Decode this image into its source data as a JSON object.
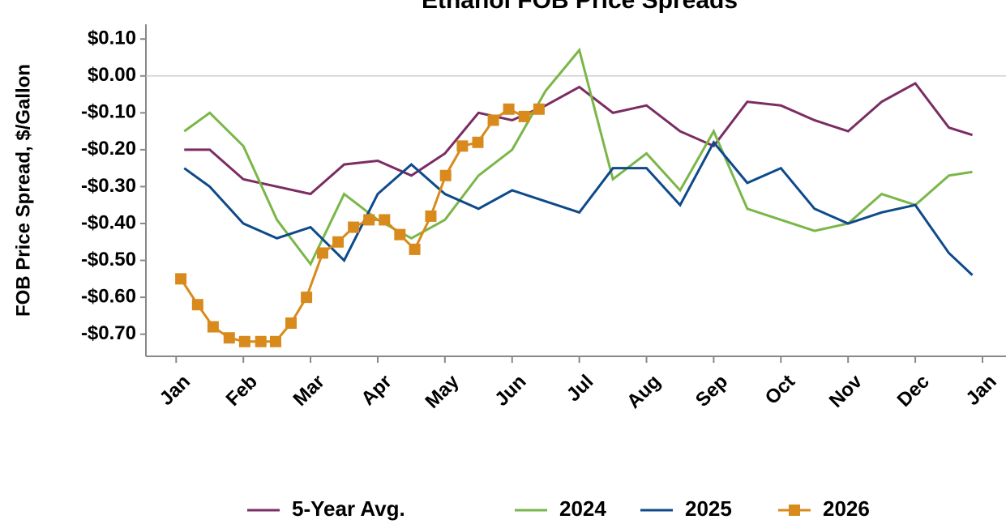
{
  "chart_data": {
    "type": "line",
    "title": "Ethanol FOB Price Spreads",
    "y_label": "FOB Price Spread, $/Gallon",
    "xlim": [
      -0.45,
      12.35
    ],
    "xticks": [
      {
        "value": 0,
        "label": "Jan"
      },
      {
        "value": 1,
        "label": "Feb"
      },
      {
        "value": 2,
        "label": "Mar"
      },
      {
        "value": 3,
        "label": "Apr"
      },
      {
        "value": 4,
        "label": "May"
      },
      {
        "value": 5,
        "label": "Jun"
      },
      {
        "value": 6,
        "label": "Jul"
      },
      {
        "value": 7,
        "label": "Aug"
      },
      {
        "value": 8,
        "label": "Sep"
      },
      {
        "value": 9,
        "label": "Oct"
      },
      {
        "value": 10,
        "label": "Nov"
      },
      {
        "value": 11,
        "label": "Dec"
      },
      {
        "value": 12,
        "label": "Jan"
      }
    ],
    "ylim": [
      -0.76,
      0.14
    ],
    "yticks": [
      {
        "value": 0.1,
        "label": "$0.10"
      },
      {
        "value": 0,
        "label": "$0.00"
      },
      {
        "value": -0.1,
        "label": "-$0.10"
      },
      {
        "value": -0.2,
        "label": "-$0.20"
      },
      {
        "value": -0.3,
        "label": "-$0.30"
      },
      {
        "value": -0.4,
        "label": "-$0.40"
      },
      {
        "value": -0.5,
        "label": "-$0.50"
      },
      {
        "value": -0.6,
        "label": "-$0.60"
      },
      {
        "value": -0.7,
        "label": "-$0.70"
      }
    ],
    "zero_line": true,
    "legend": "bottom",
    "series": [
      {
        "name": "5-Year Avg.",
        "color": "#7b2d63",
        "marker": false,
        "x": [
          0.12,
          0.5,
          1,
          1.5,
          2,
          2.5,
          3,
          3.5,
          4,
          4.5,
          5,
          5.5,
          6,
          6.5,
          7,
          7.5,
          8,
          8.5,
          9,
          9.5,
          10,
          10.5,
          11,
          11.5,
          11.85
        ],
        "values": [
          -0.2,
          -0.2,
          -0.28,
          -0.3,
          -0.32,
          -0.24,
          -0.23,
          -0.27,
          -0.21,
          -0.1,
          -0.12,
          -0.08,
          -0.03,
          -0.1,
          -0.08,
          -0.15,
          -0.19,
          -0.07,
          -0.08,
          -0.12,
          -0.15,
          -0.07,
          -0.02,
          -0.14,
          -0.16
        ]
      },
      {
        "name": "2024",
        "color": "#7ab648",
        "marker": false,
        "x": [
          0.12,
          0.5,
          1,
          1.5,
          2,
          2.5,
          3,
          3.5,
          4,
          4.5,
          5,
          5.5,
          6,
          6.5,
          7,
          7.5,
          8,
          8.5,
          9,
          9.5,
          10,
          10.5,
          11,
          11.5,
          11.85
        ],
        "values": [
          -0.15,
          -0.1,
          -0.19,
          -0.39,
          -0.51,
          -0.32,
          -0.39,
          -0.44,
          -0.39,
          -0.27,
          -0.2,
          -0.04,
          0.07,
          -0.28,
          -0.21,
          -0.31,
          -0.15,
          -0.36,
          -0.39,
          -0.42,
          -0.4,
          -0.32,
          -0.35,
          -0.27,
          -0.26
        ]
      },
      {
        "name": "2025",
        "color": "#0e4a8a",
        "marker": false,
        "x": [
          0.12,
          0.5,
          1,
          1.5,
          2,
          2.5,
          3,
          3.5,
          4,
          4.5,
          5,
          5.5,
          6,
          6.5,
          7,
          7.5,
          8,
          8.5,
          9,
          9.5,
          10,
          10.5,
          11,
          11.5,
          11.85
        ],
        "values": [
          -0.25,
          -0.3,
          -0.4,
          -0.44,
          -0.41,
          -0.5,
          -0.32,
          -0.24,
          -0.32,
          -0.36,
          -0.31,
          -0.34,
          -0.37,
          -0.25,
          -0.25,
          -0.35,
          -0.18,
          -0.29,
          -0.25,
          -0.36,
          -0.4,
          -0.37,
          -0.35,
          -0.48,
          -0.54
        ]
      },
      {
        "name": "2026",
        "color": "#d98a1c",
        "marker": true,
        "x": [
          0.07,
          0.32,
          0.55,
          0.79,
          1.02,
          1.26,
          1.48,
          1.71,
          1.94,
          2.18,
          2.41,
          2.64,
          2.87,
          3.1,
          3.33,
          3.55,
          3.79,
          4.01,
          4.26,
          4.49,
          4.72,
          4.95,
          5.18,
          5.4
        ],
        "values": [
          -0.55,
          -0.62,
          -0.68,
          -0.71,
          -0.72,
          -0.72,
          -0.72,
          -0.67,
          -0.6,
          -0.48,
          -0.45,
          -0.41,
          -0.39,
          -0.39,
          -0.43,
          -0.47,
          -0.38,
          -0.27,
          -0.19,
          -0.18,
          -0.12,
          -0.09,
          -0.11,
          -0.09
        ]
      }
    ]
  }
}
